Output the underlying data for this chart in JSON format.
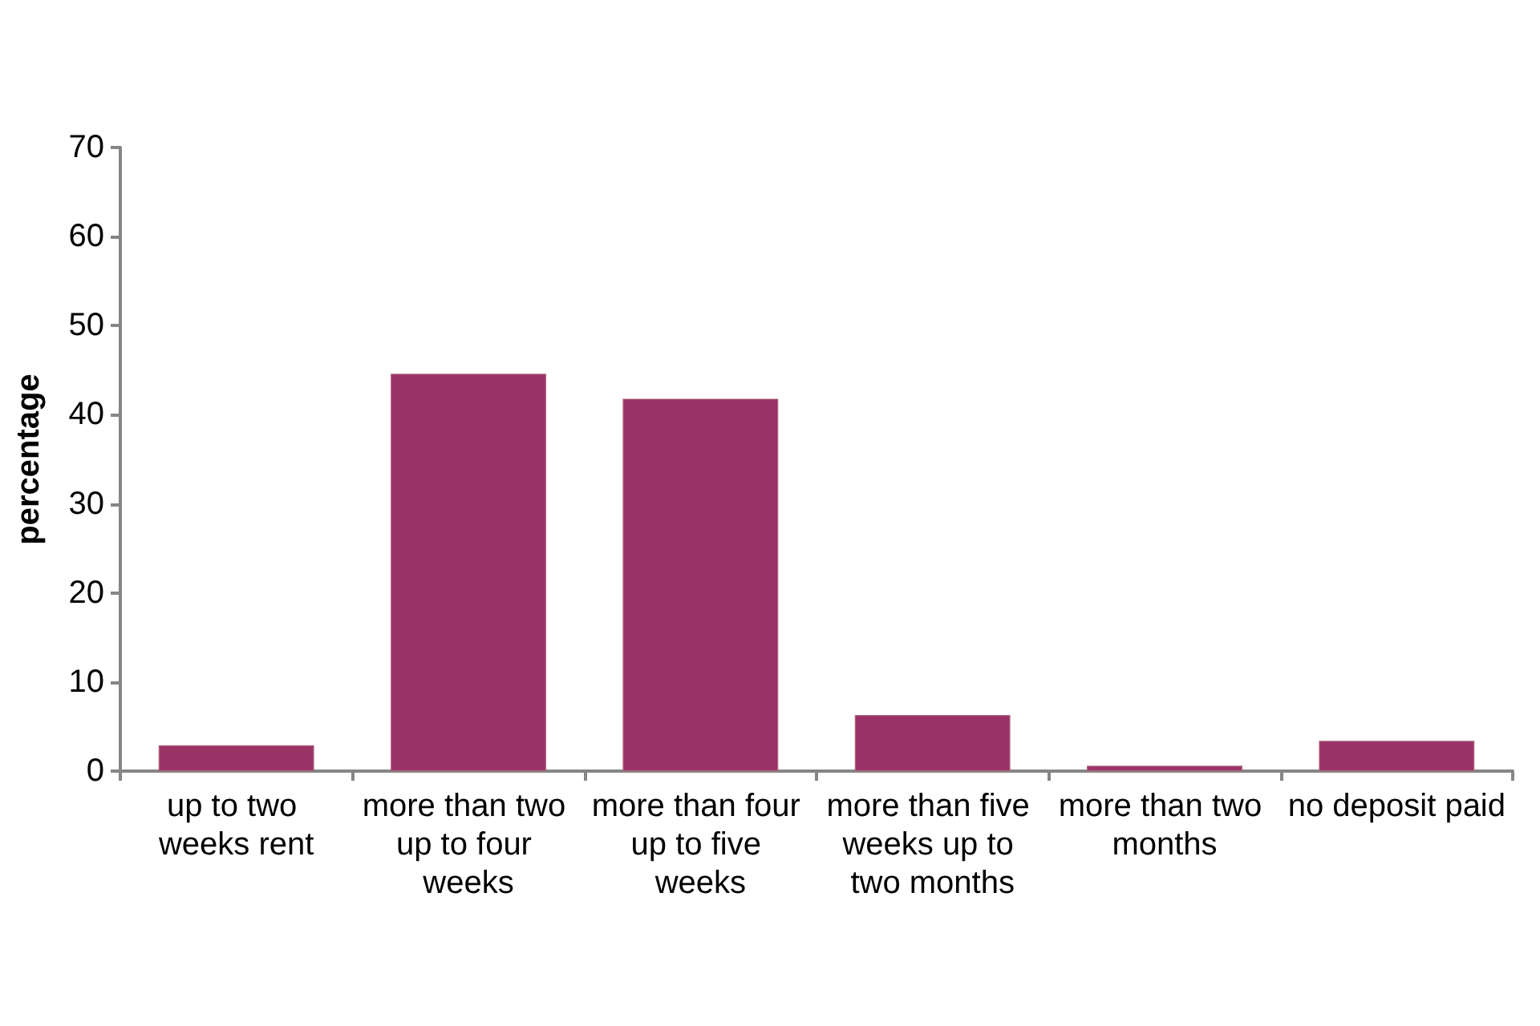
{
  "chart_data": {
    "type": "bar",
    "ylabel": "percentage",
    "categories": [
      "up to two weeks rent",
      "more than two up to four weeks",
      "more than four up to five weeks",
      "more than five weeks up to two months",
      "more than two months",
      "no deposit paid"
    ],
    "values": [
      2.9,
      44.6,
      41.8,
      6.3,
      0.6,
      3.4
    ],
    "color": "#993366",
    "ylim": [
      0,
      70
    ],
    "yticks": [
      0,
      10,
      20,
      30,
      40,
      50,
      60,
      70
    ],
    "grid": false
  }
}
